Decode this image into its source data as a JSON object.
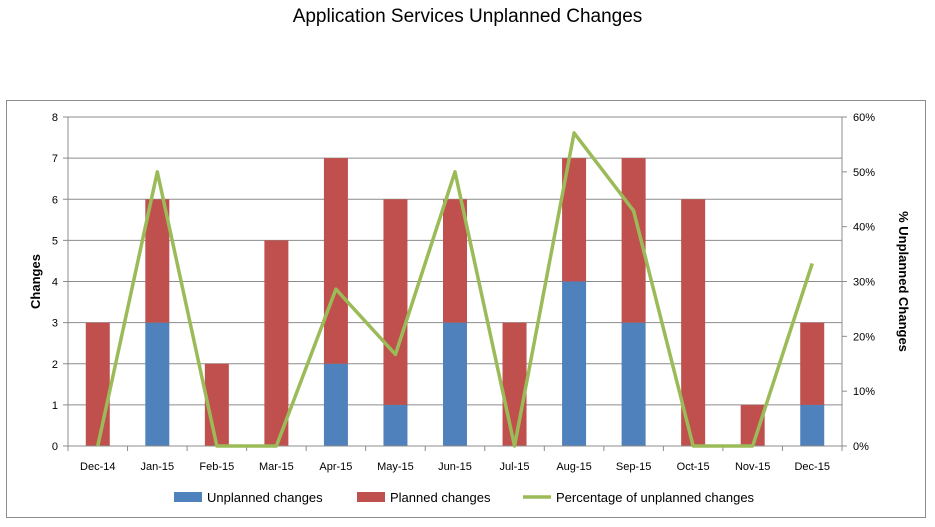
{
  "title": "Application Services Unplanned Changes",
  "chart_data": {
    "type": "bar",
    "stacked": true,
    "categories": [
      "Dec-14",
      "Jan-15",
      "Feb-15",
      "Mar-15",
      "Apr-15",
      "May-15",
      "Jun-15",
      "Jul-15",
      "Aug-15",
      "Sep-15",
      "Oct-15",
      "Nov-15",
      "Dec-15"
    ],
    "series": [
      {
        "name": "Unplanned changes",
        "type": "bar",
        "axis": "left",
        "color": "#4f81bd",
        "values": [
          0,
          3,
          0,
          0,
          2,
          1,
          3,
          0,
          4,
          3,
          0,
          0,
          1
        ]
      },
      {
        "name": "Planned changes",
        "type": "bar",
        "axis": "left",
        "color": "#c0504d",
        "values": [
          3,
          3,
          2,
          5,
          5,
          5,
          3,
          3,
          3,
          4,
          6,
          1,
          2
        ]
      },
      {
        "name": "Percentage of unplanned changes",
        "type": "line",
        "axis": "right",
        "color": "#9bbb59",
        "values": [
          0,
          50,
          0,
          0,
          28.6,
          16.7,
          50,
          0,
          57.1,
          42.9,
          0,
          0,
          33.3
        ]
      }
    ],
    "ylabel": "Changes",
    "ylabel_right": "% Unplanned Changes",
    "ylim": [
      0,
      8
    ],
    "yticks": [
      "0",
      "1",
      "2",
      "3",
      "4",
      "5",
      "6",
      "7",
      "8"
    ],
    "ylim_right": [
      0,
      60
    ],
    "yticks_right": [
      "0%",
      "10%",
      "20%",
      "30%",
      "40%",
      "50%",
      "60%"
    ],
    "grid": true,
    "legend_position": "bottom"
  }
}
